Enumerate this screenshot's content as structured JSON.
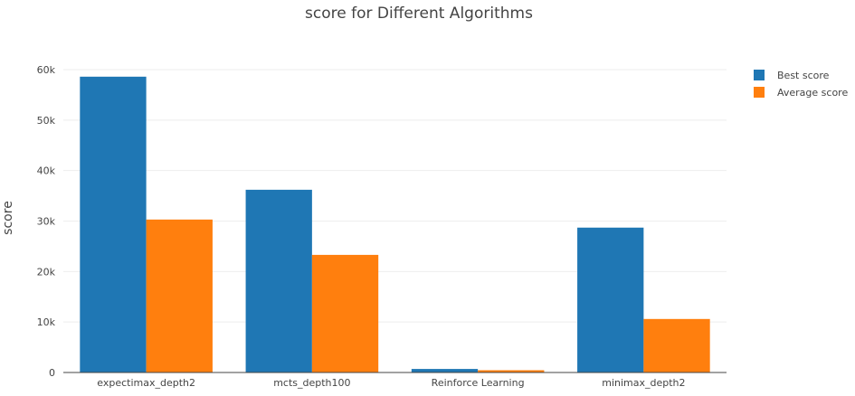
{
  "chart_data": {
    "type": "bar",
    "title": "score for Different Algorithms",
    "xlabel": "",
    "ylabel": "score",
    "categories": [
      "expectimax_depth2",
      "mcts_depth100",
      "Reinforce Learning",
      "minimax_depth2"
    ],
    "series": [
      {
        "name": "Best score",
        "color": "#1f77b4",
        "values": [
          58600,
          36200,
          700,
          28700
        ]
      },
      {
        "name": "Average score",
        "color": "#ff7f0e",
        "values": [
          30300,
          23300,
          450,
          10600
        ]
      }
    ],
    "ylim": [
      0,
      60000
    ],
    "yticks": [
      0,
      10000,
      20000,
      30000,
      40000,
      50000,
      60000
    ],
    "ytick_labels": [
      "0",
      "10k",
      "20k",
      "30k",
      "40k",
      "50k",
      "60k"
    ],
    "grid": true,
    "legend_position": "top-right"
  }
}
